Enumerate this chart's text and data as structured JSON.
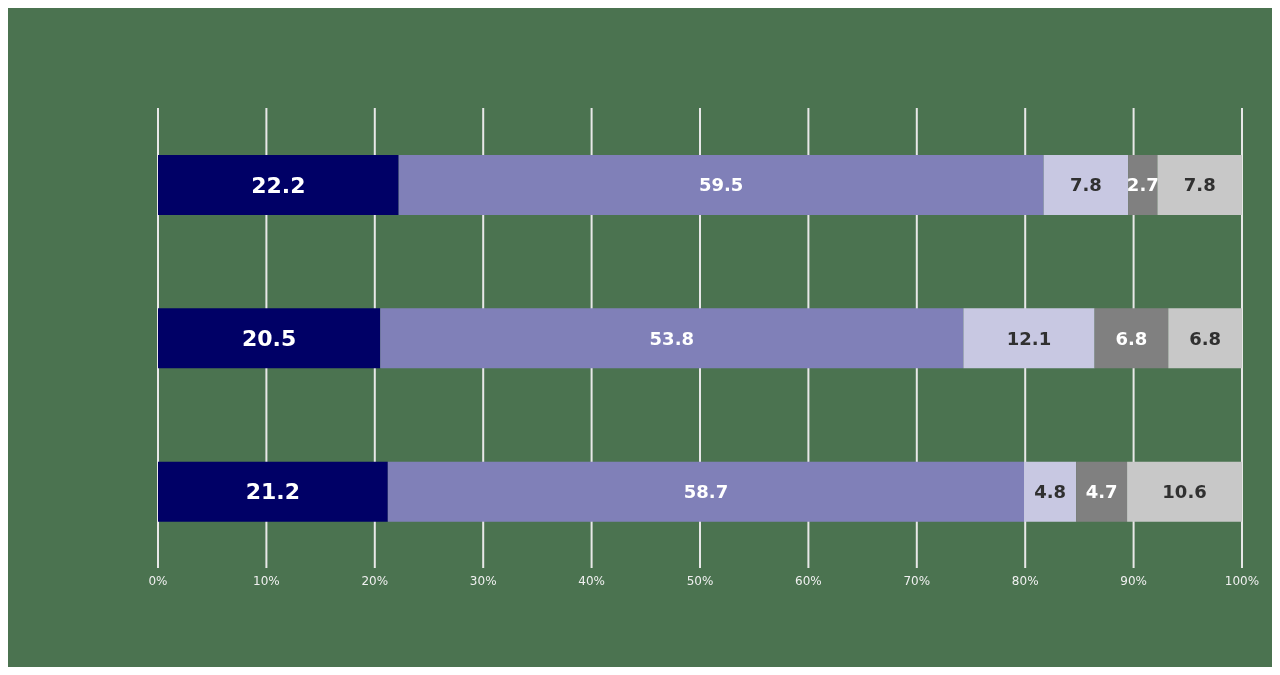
{
  "chart_data": {
    "type": "bar",
    "orientation": "horizontal",
    "stacked": true,
    "categories": [
      null,
      null,
      null
    ],
    "series": [
      {
        "color": "#000066",
        "values": [
          22.2,
          20.5,
          21.2
        ]
      },
      {
        "color": "#8080b8",
        "values": [
          59.5,
          53.8,
          58.7
        ]
      },
      {
        "color": "#c8c8e2",
        "values": [
          7.8,
          12.1,
          4.8
        ]
      },
      {
        "color": "#808080",
        "values": [
          2.7,
          6.8,
          4.7
        ]
      },
      {
        "color": "#c8c8c8",
        "values": [
          7.8,
          6.8,
          10.6
        ]
      }
    ],
    "xlim": [
      0,
      100
    ],
    "xticks": [
      {
        "value": 0,
        "label": "0%"
      },
      {
        "value": 10,
        "label": "10%"
      },
      {
        "value": 20,
        "label": "20%"
      },
      {
        "value": 30,
        "label": "30%"
      },
      {
        "value": 40,
        "label": "40%"
      },
      {
        "value": 50,
        "label": "50%"
      },
      {
        "value": 60,
        "label": "60%"
      },
      {
        "value": 70,
        "label": "70%"
      },
      {
        "value": 80,
        "label": "80%"
      },
      {
        "value": 90,
        "label": "90%"
      },
      {
        "value": 100,
        "label": "100%"
      }
    ],
    "grid": "x",
    "data_labels": true,
    "legend": false
  }
}
